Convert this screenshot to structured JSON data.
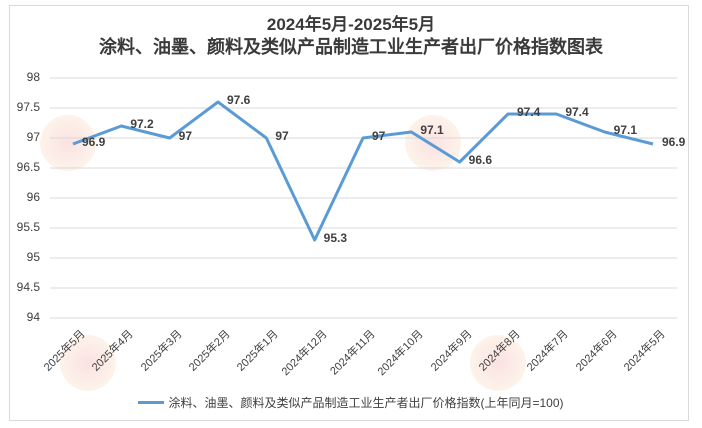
{
  "title": {
    "line1": "2024年5月-2025年5月",
    "line2": "涂料、油墨、颜料及类似产品制造工业生产者出厂价格指数图表"
  },
  "legend": {
    "label": "涂料、油墨、颜料及类似产品制造工业生产者出厂价格指数(上年同月=100)",
    "color": "#5b9bd5"
  },
  "watermark": {
    "text": "www.ChinaIRN.com 中研普华研究院",
    "logo": "CIRN"
  },
  "chart_data": {
    "type": "line",
    "title": "2024年5月-2025年5月 涂料、油墨、颜料及类似产品制造工业生产者出厂价格指数图表",
    "xlabel": "",
    "ylabel": "",
    "ylim": [
      94,
      98
    ],
    "yticks": [
      "98",
      "97.5",
      "97",
      "96.5",
      "96",
      "95.5",
      "95",
      "94.5",
      "94"
    ],
    "grid": true,
    "legend_position": "bottom",
    "categories": [
      "2025年5月",
      "2025年4月",
      "2025年3月",
      "2025年2月",
      "2025年1月",
      "2024年12月",
      "2024年11月",
      "2024年10月",
      "2024年9月",
      "2024年8月",
      "2024年7月",
      "2024年6月",
      "2024年5月"
    ],
    "series": [
      {
        "name": "涂料、油墨、颜料及类似产品制造工业生产者出厂价格指数(上年同月=100)",
        "color": "#5b9bd5",
        "values": [
          96.9,
          97.2,
          97,
          97.6,
          97,
          95.3,
          97,
          97.1,
          96.6,
          97.4,
          97.4,
          97.1,
          96.9
        ],
        "labels": [
          "96.9",
          "97.2",
          "97",
          "97.6",
          "97",
          "95.3",
          "97",
          "97.1",
          "96.6",
          "97.4",
          "97.4",
          "97.1",
          "96.9"
        ]
      }
    ]
  }
}
